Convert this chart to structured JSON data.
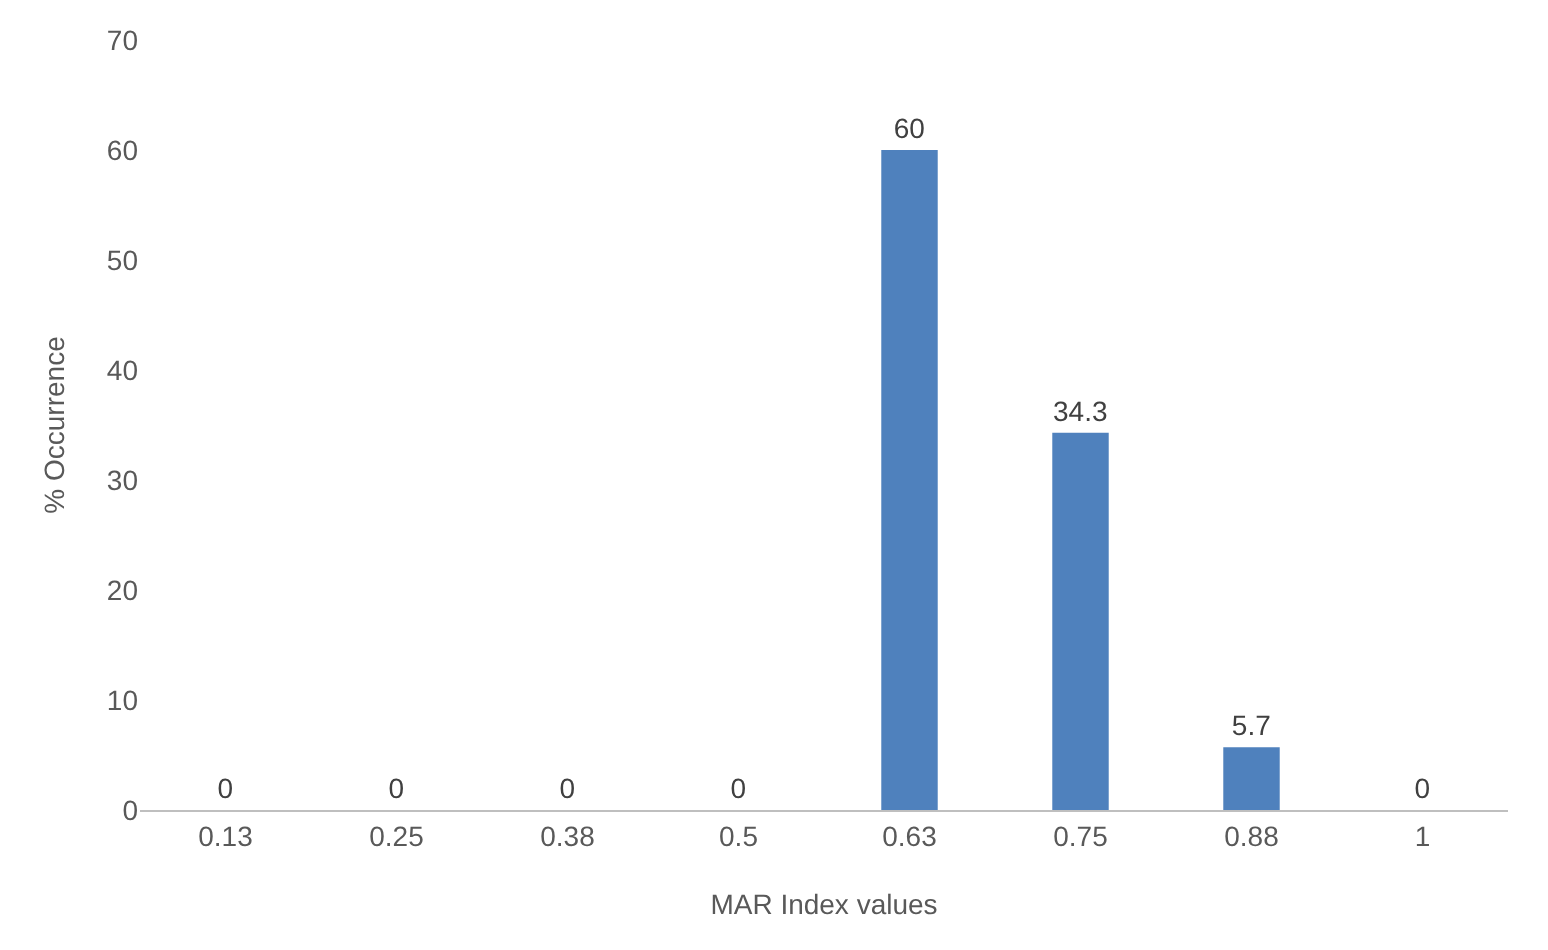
{
  "chart_data": {
    "type": "bar",
    "xlabel": "MAR Index values",
    "ylabel": "% Occurrence",
    "categories": [
      "0.13",
      "0.25",
      "0.38",
      "0.5",
      "0.63",
      "0.75",
      "0.88",
      "1"
    ],
    "values": [
      0,
      0,
      0,
      0,
      60,
      34.3,
      5.7,
      0
    ],
    "color": "#4f81bd",
    "ylim": [
      0,
      70
    ],
    "yticks": [
      0,
      10,
      20,
      30,
      40,
      50,
      60,
      70
    ],
    "data_labels": true
  }
}
